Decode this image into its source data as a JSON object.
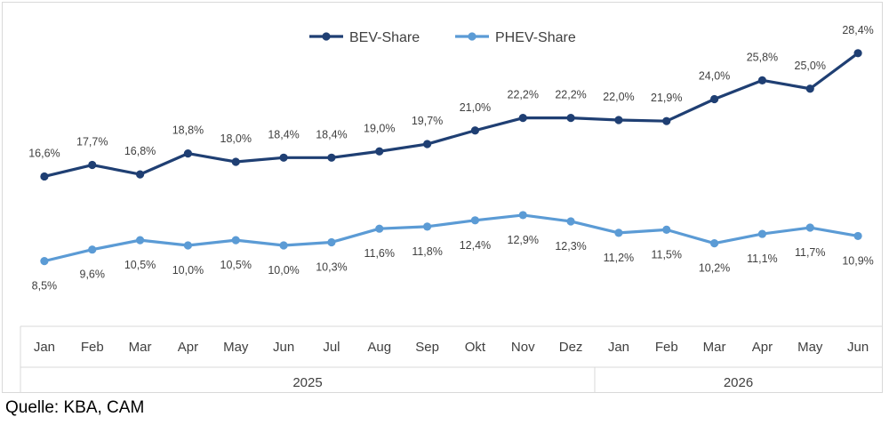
{
  "chart_data": {
    "type": "line",
    "categories": [
      "Jan",
      "Feb",
      "Mar",
      "Apr",
      "May",
      "Jun",
      "Jul",
      "Aug",
      "Sep",
      "Okt",
      "Nov",
      "Dez",
      "Jan",
      "Feb",
      "Mar",
      "Apr",
      "May",
      "Jun"
    ],
    "groups": [
      {
        "label": "2025",
        "count": 12
      },
      {
        "label": "2026",
        "count": 6
      }
    ],
    "series": [
      {
        "name": "BEV-Share",
        "color": "#1f3f73",
        "values": [
          16.6,
          17.7,
          16.8,
          18.8,
          18.0,
          18.4,
          18.4,
          19.0,
          19.7,
          21.0,
          22.2,
          22.2,
          22.0,
          21.9,
          24.0,
          25.8,
          25.0,
          28.4
        ],
        "labels": [
          "16,6%",
          "17,7%",
          "16,8%",
          "18,8%",
          "18,0%",
          "18,4%",
          "18,4%",
          "19,0%",
          "19,7%",
          "21,0%",
          "22,2%",
          "22,2%",
          "22,0%",
          "21,9%",
          "24,0%",
          "25,8%",
          "25,0%",
          "28,4%"
        ]
      },
      {
        "name": "PHEV-Share",
        "color": "#5b9bd5",
        "values": [
          8.5,
          9.6,
          10.5,
          10.0,
          10.5,
          10.0,
          10.3,
          11.6,
          11.8,
          12.4,
          12.9,
          12.3,
          11.2,
          11.5,
          10.2,
          11.1,
          11.7,
          10.9
        ],
        "labels": [
          "8,5%",
          "9,6%",
          "10,5%",
          "10,0%",
          "10,5%",
          "10,0%",
          "10,3%",
          "11,6%",
          "11,8%",
          "12,4%",
          "12,9%",
          "12,3%",
          "11,2%",
          "11,5%",
          "10,2%",
          "11,1%",
          "11,7%",
          "10,9%"
        ]
      }
    ],
    "legend": "top-center",
    "grid": false
  },
  "source_note": "Quelle: KBA, CAM"
}
